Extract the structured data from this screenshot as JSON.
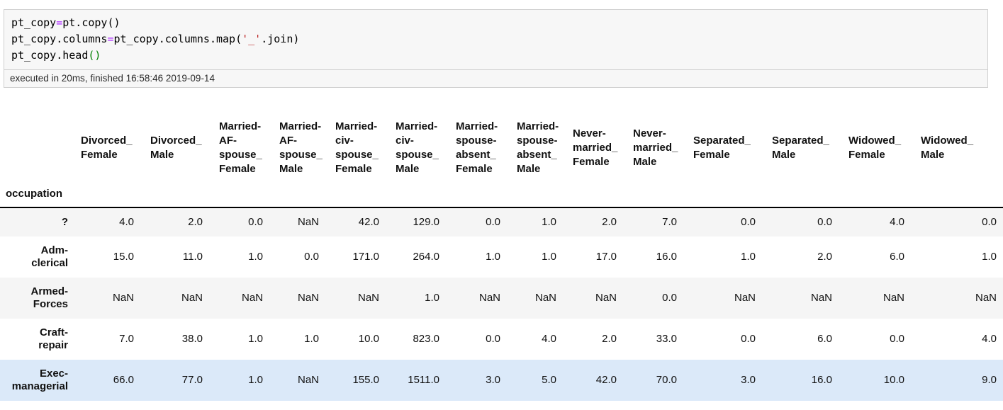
{
  "code_cell": {
    "lines": [
      [
        {
          "text": "pt_copy",
          "style": "plain"
        },
        {
          "text": "=",
          "style": "operator"
        },
        {
          "text": "pt.copy()",
          "style": "plain"
        }
      ],
      [
        {
          "text": "pt_copy.columns",
          "style": "plain"
        },
        {
          "text": "=",
          "style": "operator"
        },
        {
          "text": "pt_copy.columns.map(",
          "style": "plain"
        },
        {
          "text": "'_'",
          "style": "string"
        },
        {
          "text": ".join)",
          "style": "plain"
        }
      ],
      [
        {
          "text": "pt_copy.head",
          "style": "plain"
        },
        {
          "text": "()",
          "style": "bracket"
        }
      ]
    ],
    "status": "executed in 20ms, finished 16:58:46 2019-09-14"
  },
  "table": {
    "index_name": "occupation",
    "columns": [
      "Divorced_Female",
      "Divorced_Male",
      "Married-AF-spouse_Female",
      "Married-AF-spouse_Male",
      "Married-civ-spouse_Female",
      "Married-civ-spouse_Male",
      "Married-spouse-absent_Female",
      "Married-spouse-absent_Male",
      "Never-married_Female",
      "Never-married_Male",
      "Separated_Female",
      "Separated_Male",
      "Widowed_Female",
      "Widowed_Male"
    ],
    "rows": [
      {
        "label": "?",
        "highlighted": false,
        "values": [
          "4.0",
          "2.0",
          "0.0",
          "NaN",
          "42.0",
          "129.0",
          "0.0",
          "1.0",
          "2.0",
          "7.0",
          "0.0",
          "0.0",
          "4.0",
          "0.0"
        ]
      },
      {
        "label": "Adm-clerical",
        "highlighted": false,
        "values": [
          "15.0",
          "11.0",
          "1.0",
          "0.0",
          "171.0",
          "264.0",
          "1.0",
          "1.0",
          "17.0",
          "16.0",
          "1.0",
          "2.0",
          "6.0",
          "1.0"
        ]
      },
      {
        "label": "Armed-Forces",
        "highlighted": false,
        "values": [
          "NaN",
          "NaN",
          "NaN",
          "NaN",
          "NaN",
          "1.0",
          "NaN",
          "NaN",
          "NaN",
          "0.0",
          "NaN",
          "NaN",
          "NaN",
          "NaN"
        ]
      },
      {
        "label": "Craft-repair",
        "highlighted": false,
        "values": [
          "7.0",
          "38.0",
          "1.0",
          "1.0",
          "10.0",
          "823.0",
          "0.0",
          "4.0",
          "2.0",
          "33.0",
          "0.0",
          "6.0",
          "0.0",
          "4.0"
        ]
      },
      {
        "label": "Exec-managerial",
        "highlighted": true,
        "values": [
          "66.0",
          "77.0",
          "1.0",
          "NaN",
          "155.0",
          "1511.0",
          "3.0",
          "5.0",
          "42.0",
          "70.0",
          "3.0",
          "16.0",
          "10.0",
          "9.0"
        ]
      }
    ]
  },
  "colors": {
    "code_operator": "#AA22FF",
    "code_string": "#BA2121",
    "code_bracket": "#008000",
    "code_plain": "#000000",
    "stripe_row_bg": "#f5f5f5",
    "highlight_row_bg": "#dbe9f9",
    "cell_background": "#f7f7f7",
    "header_rule": "#000000"
  }
}
